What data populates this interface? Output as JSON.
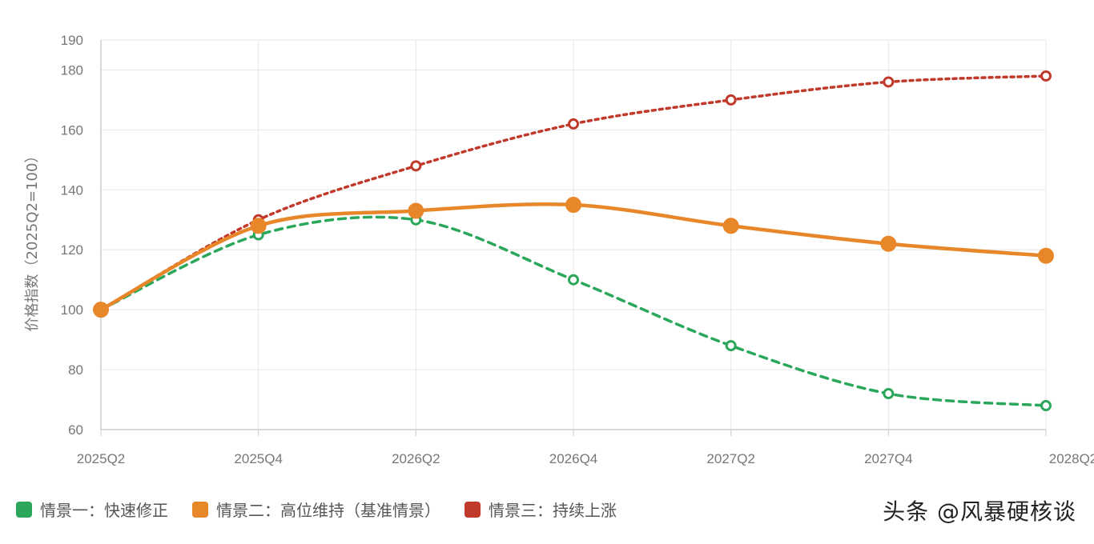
{
  "chart_data": {
    "type": "line",
    "title": "",
    "xlabel": "",
    "ylabel": "价格指数（2025Q2=100）",
    "categories": [
      "2025Q2",
      "2025Q4",
      "2026Q2",
      "2026Q4",
      "2027Q2",
      "2027Q4",
      "2028Q2"
    ],
    "ylim": [
      60,
      190
    ],
    "yticks": [
      60,
      80,
      100,
      120,
      140,
      160,
      180,
      190
    ],
    "grid": true,
    "legend_position": "bottom-left",
    "series": [
      {
        "name": "情景一：快速修正",
        "color": "#2aa75a",
        "style": "dashed",
        "values": [
          100,
          125,
          130,
          110,
          88,
          72,
          68
        ]
      },
      {
        "name": "情景二：高位维持（基准情景）",
        "color": "#e8862a",
        "style": "solid",
        "values": [
          100,
          128,
          133,
          135,
          128,
          122,
          118
        ]
      },
      {
        "name": "情景三：持续上涨",
        "color": "#c0392b",
        "style": "dotted",
        "values": [
          100,
          130,
          148,
          162,
          170,
          176,
          178
        ]
      }
    ]
  },
  "watermark": "头条 @风暴硬核谈"
}
